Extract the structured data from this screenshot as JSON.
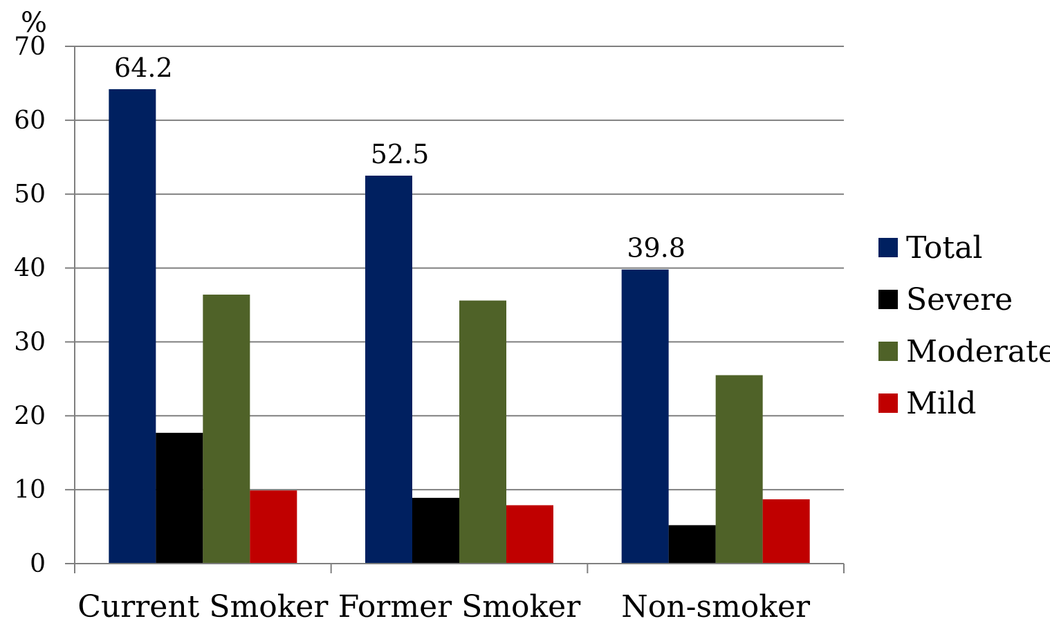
{
  "chart_data": {
    "type": "bar",
    "ylabel": "%",
    "ylim": [
      0,
      70
    ],
    "yticks": [
      0,
      10,
      20,
      30,
      40,
      50,
      60,
      70
    ],
    "grid": true,
    "legend_position": "right",
    "categories": [
      "Current Smoker",
      "Former Smoker",
      "Non-smoker"
    ],
    "series": [
      {
        "name": "Total",
        "color": "#002060",
        "values": [
          64.2,
          52.5,
          39.8
        ]
      },
      {
        "name": "Severe",
        "color": "#000000",
        "values": [
          17.7,
          8.9,
          5.2
        ]
      },
      {
        "name": "Moderate",
        "color": "#4F6228",
        "values": [
          36.4,
          35.6,
          25.5
        ]
      },
      {
        "name": "Mild",
        "color": "#C00000",
        "values": [
          9.9,
          7.9,
          8.7
        ]
      }
    ],
    "data_labels": [
      {
        "series": "Total",
        "category": "Current Smoker",
        "text": "64.2"
      },
      {
        "series": "Total",
        "category": "Former Smoker",
        "text": "52.5"
      },
      {
        "series": "Total",
        "category": "Non-smoker",
        "text": "39.8"
      }
    ]
  }
}
